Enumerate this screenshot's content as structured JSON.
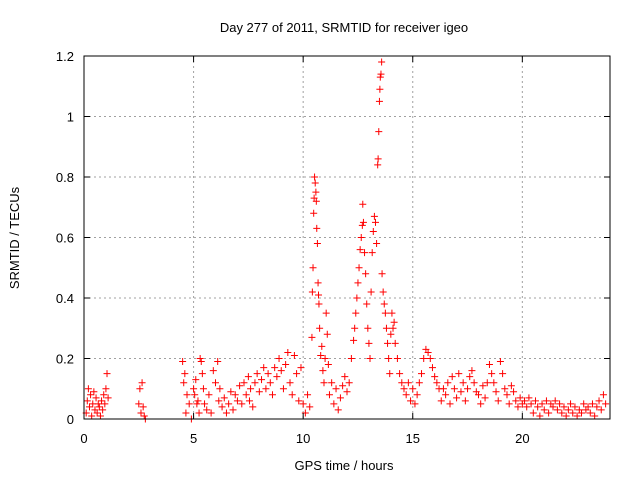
{
  "colors": {
    "points": "#ff0000",
    "axes": "#000000",
    "grid": "#a0a0a0",
    "background": "#ffffff"
  },
  "chart_data": {
    "type": "scatter",
    "title": "Day 277 of 2011, SRMTID for receiver igeo",
    "xlabel": "GPS time / hours",
    "ylabel": "SRMTID / TECUs",
    "xlim": [
      0,
      24
    ],
    "ylim": [
      0,
      1.2
    ],
    "grid": true,
    "marker": "plus",
    "x_ticks": [
      0,
      5,
      10,
      15,
      20
    ],
    "x_tick_labels": [
      "0",
      "5",
      "10",
      "15",
      "20"
    ],
    "y_ticks": [
      0,
      0.2,
      0.4,
      0.6,
      0.8,
      1,
      1.2
    ],
    "y_tick_labels": [
      "0",
      "0.2",
      "0.4",
      "0.6",
      "0.8",
      "1",
      "1.2"
    ],
    "series": [
      {
        "name": "SRMTID",
        "points": [
          [
            0.1,
            0.02
          ],
          [
            0.15,
            0.06
          ],
          [
            0.2,
            0.1
          ],
          [
            0.25,
            0.04
          ],
          [
            0.3,
            0.08
          ],
          [
            0.35,
            0.01
          ],
          [
            0.4,
            0.05
          ],
          [
            0.45,
            0.09
          ],
          [
            0.5,
            0.03
          ],
          [
            0.55,
            0.07
          ],
          [
            0.6,
            0.02
          ],
          [
            0.65,
            0.05
          ],
          [
            0.7,
            0.04
          ],
          [
            0.75,
            0.01
          ],
          [
            0.8,
            0.06
          ],
          [
            0.85,
            0.03
          ],
          [
            0.9,
            0.08
          ],
          [
            0.95,
            0.05
          ],
          [
            1.0,
            0.1
          ],
          [
            1.05,
            0.15
          ],
          [
            1.1,
            0.07
          ],
          [
            2.5,
            0.05
          ],
          [
            2.55,
            0.1
          ],
          [
            2.6,
            0.02
          ],
          [
            2.65,
            0.12
          ],
          [
            2.7,
            0.04
          ],
          [
            2.75,
            0.01
          ],
          [
            2.8,
            0.0
          ],
          [
            4.5,
            0.19
          ],
          [
            4.55,
            0.12
          ],
          [
            4.6,
            0.15
          ],
          [
            4.65,
            0.02
          ],
          [
            4.7,
            0.08
          ],
          [
            4.8,
            0.05
          ],
          [
            4.9,
            0.0
          ],
          [
            5.0,
            0.1
          ],
          [
            5.05,
            0.08
          ],
          [
            5.1,
            0.13
          ],
          [
            5.15,
            0.05
          ],
          [
            5.2,
            0.06
          ],
          [
            5.25,
            0.02
          ],
          [
            5.3,
            0.2
          ],
          [
            5.35,
            0.19
          ],
          [
            5.4,
            0.15
          ],
          [
            5.45,
            0.1
          ],
          [
            5.5,
            0.05
          ],
          [
            5.6,
            0.03
          ],
          [
            5.7,
            0.08
          ],
          [
            5.8,
            0.02
          ],
          [
            5.9,
            0.16
          ],
          [
            6.0,
            0.12
          ],
          [
            6.1,
            0.19
          ],
          [
            6.15,
            0.06
          ],
          [
            6.2,
            0.1
          ],
          [
            6.3,
            0.04
          ],
          [
            6.4,
            0.07
          ],
          [
            6.5,
            0.02
          ],
          [
            6.6,
            0.05
          ],
          [
            6.7,
            0.09
          ],
          [
            6.8,
            0.03
          ],
          [
            6.9,
            0.08
          ],
          [
            7.0,
            0.06
          ],
          [
            7.1,
            0.11
          ],
          [
            7.2,
            0.05
          ],
          [
            7.3,
            0.12
          ],
          [
            7.4,
            0.08
          ],
          [
            7.5,
            0.14
          ],
          [
            7.55,
            0.06
          ],
          [
            7.6,
            0.1
          ],
          [
            7.7,
            0.04
          ],
          [
            7.8,
            0.12
          ],
          [
            7.9,
            0.15
          ],
          [
            8.0,
            0.09
          ],
          [
            8.1,
            0.13
          ],
          [
            8.2,
            0.17
          ],
          [
            8.3,
            0.1
          ],
          [
            8.4,
            0.15
          ],
          [
            8.5,
            0.12
          ],
          [
            8.6,
            0.08
          ],
          [
            8.7,
            0.17
          ],
          [
            8.8,
            0.14
          ],
          [
            8.9,
            0.2
          ],
          [
            9.0,
            0.16
          ],
          [
            9.1,
            0.1
          ],
          [
            9.2,
            0.18
          ],
          [
            9.3,
            0.22
          ],
          [
            9.4,
            0.12
          ],
          [
            9.5,
            0.08
          ],
          [
            9.6,
            0.21
          ],
          [
            9.7,
            0.15
          ],
          [
            9.8,
            0.06
          ],
          [
            9.9,
            0.17
          ],
          [
            10.0,
            0.05
          ],
          [
            10.1,
            0.02
          ],
          [
            10.2,
            0.08
          ],
          [
            10.3,
            0.04
          ],
          [
            10.4,
            0.27
          ],
          [
            10.42,
            0.42
          ],
          [
            10.45,
            0.5
          ],
          [
            10.48,
            0.68
          ],
          [
            10.5,
            0.73
          ],
          [
            10.52,
            0.8
          ],
          [
            10.55,
            0.78
          ],
          [
            10.58,
            0.75
          ],
          [
            10.6,
            0.72
          ],
          [
            10.62,
            0.63
          ],
          [
            10.65,
            0.58
          ],
          [
            10.68,
            0.45
          ],
          [
            10.7,
            0.41
          ],
          [
            10.72,
            0.38
          ],
          [
            10.75,
            0.3
          ],
          [
            10.8,
            0.21
          ],
          [
            10.85,
            0.24
          ],
          [
            10.9,
            0.16
          ],
          [
            10.95,
            0.12
          ],
          [
            11.0,
            0.2
          ],
          [
            11.05,
            0.35
          ],
          [
            11.1,
            0.28
          ],
          [
            11.15,
            0.18
          ],
          [
            11.2,
            0.08
          ],
          [
            11.3,
            0.12
          ],
          [
            11.4,
            0.05
          ],
          [
            11.5,
            0.1
          ],
          [
            11.6,
            0.03
          ],
          [
            11.7,
            0.07
          ],
          [
            11.8,
            0.11
          ],
          [
            11.9,
            0.14
          ],
          [
            12.0,
            0.09
          ],
          [
            12.1,
            0.12
          ],
          [
            12.2,
            0.2
          ],
          [
            12.3,
            0.26
          ],
          [
            12.35,
            0.3
          ],
          [
            12.4,
            0.35
          ],
          [
            12.45,
            0.4
          ],
          [
            12.5,
            0.45
          ],
          [
            12.55,
            0.5
          ],
          [
            12.6,
            0.56
          ],
          [
            12.65,
            0.6
          ],
          [
            12.7,
            0.64
          ],
          [
            12.72,
            0.71
          ],
          [
            12.75,
            0.65
          ],
          [
            12.8,
            0.55
          ],
          [
            12.85,
            0.48
          ],
          [
            12.9,
            0.38
          ],
          [
            12.95,
            0.3
          ],
          [
            13.0,
            0.25
          ],
          [
            13.05,
            0.2
          ],
          [
            13.1,
            0.42
          ],
          [
            13.15,
            0.55
          ],
          [
            13.2,
            0.62
          ],
          [
            13.25,
            0.67
          ],
          [
            13.3,
            0.65
          ],
          [
            13.35,
            0.58
          ],
          [
            13.4,
            0.84
          ],
          [
            13.42,
            0.86
          ],
          [
            13.45,
            0.95
          ],
          [
            13.48,
            1.05
          ],
          [
            13.5,
            1.09
          ],
          [
            13.52,
            1.13
          ],
          [
            13.55,
            1.14
          ],
          [
            13.58,
            1.18
          ],
          [
            13.6,
            0.48
          ],
          [
            13.65,
            0.42
          ],
          [
            13.7,
            0.38
          ],
          [
            13.75,
            0.35
          ],
          [
            13.8,
            0.3
          ],
          [
            13.85,
            0.25
          ],
          [
            13.9,
            0.2
          ],
          [
            13.95,
            0.15
          ],
          [
            14.0,
            0.28
          ],
          [
            14.05,
            0.35
          ],
          [
            14.1,
            0.3
          ],
          [
            14.15,
            0.32
          ],
          [
            14.2,
            0.25
          ],
          [
            14.3,
            0.2
          ],
          [
            14.4,
            0.15
          ],
          [
            14.5,
            0.12
          ],
          [
            14.6,
            0.1
          ],
          [
            14.7,
            0.08
          ],
          [
            14.8,
            0.12
          ],
          [
            14.9,
            0.06
          ],
          [
            15.0,
            0.1
          ],
          [
            15.1,
            0.05
          ],
          [
            15.2,
            0.08
          ],
          [
            15.3,
            0.12
          ],
          [
            15.4,
            0.15
          ],
          [
            15.5,
            0.2
          ],
          [
            15.6,
            0.23
          ],
          [
            15.7,
            0.22
          ],
          [
            15.8,
            0.2
          ],
          [
            15.9,
            0.17
          ],
          [
            16.0,
            0.14
          ],
          [
            16.1,
            0.12
          ],
          [
            16.2,
            0.1
          ],
          [
            16.3,
            0.06
          ],
          [
            16.4,
            0.1
          ],
          [
            16.5,
            0.08
          ],
          [
            16.6,
            0.12
          ],
          [
            16.7,
            0.05
          ],
          [
            16.8,
            0.14
          ],
          [
            16.9,
            0.1
          ],
          [
            17.0,
            0.07
          ],
          [
            17.1,
            0.15
          ],
          [
            17.2,
            0.09
          ],
          [
            17.3,
            0.12
          ],
          [
            17.4,
            0.06
          ],
          [
            17.5,
            0.1
          ],
          [
            17.6,
            0.14
          ],
          [
            17.7,
            0.16
          ],
          [
            17.8,
            0.12
          ],
          [
            17.9,
            0.09
          ],
          [
            18.0,
            0.08
          ],
          [
            18.1,
            0.05
          ],
          [
            18.2,
            0.11
          ],
          [
            18.3,
            0.07
          ],
          [
            18.4,
            0.12
          ],
          [
            18.5,
            0.18
          ],
          [
            18.6,
            0.15
          ],
          [
            18.7,
            0.12
          ],
          [
            18.8,
            0.09
          ],
          [
            18.9,
            0.06
          ],
          [
            19.0,
            0.19
          ],
          [
            19.1,
            0.15
          ],
          [
            19.2,
            0.1
          ],
          [
            19.3,
            0.08
          ],
          [
            19.4,
            0.05
          ],
          [
            19.5,
            0.11
          ],
          [
            19.6,
            0.09
          ],
          [
            19.7,
            0.06
          ],
          [
            19.8,
            0.04
          ],
          [
            19.9,
            0.07
          ],
          [
            20.0,
            0.05
          ],
          [
            20.1,
            0.06
          ],
          [
            20.2,
            0.04
          ],
          [
            20.3,
            0.07
          ],
          [
            20.4,
            0.05
          ],
          [
            20.5,
            0.02
          ],
          [
            20.6,
            0.06
          ],
          [
            20.7,
            0.04
          ],
          [
            20.8,
            0.01
          ],
          [
            20.9,
            0.05
          ],
          [
            21.0,
            0.03
          ],
          [
            21.1,
            0.06
          ],
          [
            21.2,
            0.02
          ],
          [
            21.3,
            0.05
          ],
          [
            21.4,
            0.04
          ],
          [
            21.5,
            0.06
          ],
          [
            21.6,
            0.03
          ],
          [
            21.7,
            0.05
          ],
          [
            21.8,
            0.02
          ],
          [
            21.9,
            0.04
          ],
          [
            22.0,
            0.01
          ],
          [
            22.1,
            0.03
          ],
          [
            22.2,
            0.05
          ],
          [
            22.3,
            0.02
          ],
          [
            22.4,
            0.04
          ],
          [
            22.5,
            0.01
          ],
          [
            22.6,
            0.03
          ],
          [
            22.7,
            0.02
          ],
          [
            22.8,
            0.05
          ],
          [
            22.9,
            0.03
          ],
          [
            23.0,
            0.04
          ],
          [
            23.1,
            0.02
          ],
          [
            23.2,
            0.05
          ],
          [
            23.3,
            0.01
          ],
          [
            23.4,
            0.04
          ],
          [
            23.5,
            0.06
          ],
          [
            23.6,
            0.03
          ],
          [
            23.7,
            0.08
          ],
          [
            23.8,
            0.05
          ]
        ]
      }
    ]
  }
}
